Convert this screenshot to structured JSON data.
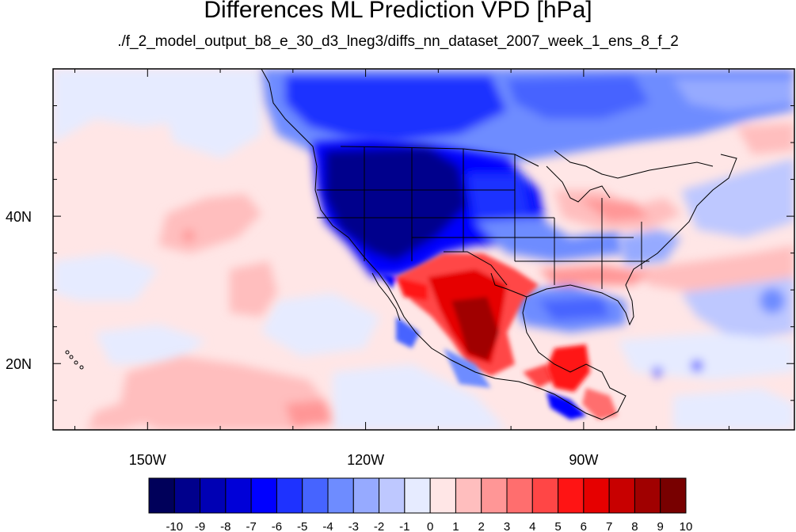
{
  "title": "Differences ML Prediction VPD [hPa]",
  "subtitle": "./f_2_model_output_b8_e_30_d3_lneg3/diffs_nn_dataset_2007_week_1_ens_8_f_2",
  "map": {
    "lon_range": [
      -163,
      -61
    ],
    "lat_range": [
      11,
      60
    ],
    "lon_ticks": [
      {
        "value": -150,
        "label": "150W"
      },
      {
        "value": -120,
        "label": "120W"
      },
      {
        "value": -90,
        "label": "90W"
      }
    ],
    "lat_ticks": [
      {
        "value": 40,
        "label": "40N"
      },
      {
        "value": 20,
        "label": "20N"
      }
    ]
  },
  "colorbar": {
    "labels": [
      "-10",
      "-9",
      "-8",
      "-7",
      "-6",
      "-5",
      "-4",
      "-3",
      "-2",
      "-1",
      "0",
      "1",
      "2",
      "3",
      "4",
      "5",
      "6",
      "7",
      "8",
      "9",
      "10"
    ],
    "colors": [
      "#00005a",
      "#00008c",
      "#0000b4",
      "#0000d8",
      "#0000ff",
      "#1e32ff",
      "#4664ff",
      "#6e8cff",
      "#96aaff",
      "#bec8ff",
      "#e6ebff",
      "#ffe6e6",
      "#ffbebe",
      "#ff9696",
      "#ff6e6e",
      "#ff4646",
      "#ff1414",
      "#e60000",
      "#c80000",
      "#a00000",
      "#780000"
    ]
  }
}
